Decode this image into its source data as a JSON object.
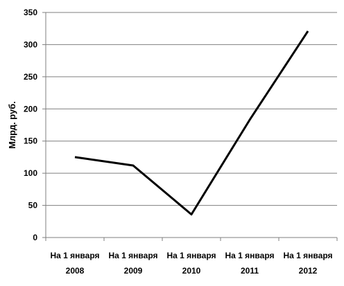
{
  "chart_data": {
    "type": "line",
    "title": "",
    "ylabel": "Млрд. руб.",
    "xlabel": "",
    "categories": [
      [
        "На 1 января",
        "2008"
      ],
      [
        "На 1 января",
        "2009"
      ],
      [
        "На 1 января",
        "2010"
      ],
      [
        "На 1 января",
        "2011"
      ],
      [
        "На 1 января",
        "2012"
      ]
    ],
    "series": [
      {
        "values": [
          125,
          112,
          36,
          183,
          321
        ],
        "color": "#000000"
      }
    ],
    "ylim": [
      0,
      350
    ],
    "yticks": [
      0,
      50,
      100,
      150,
      200,
      250,
      300,
      350
    ],
    "grid": true,
    "legend": "none"
  }
}
